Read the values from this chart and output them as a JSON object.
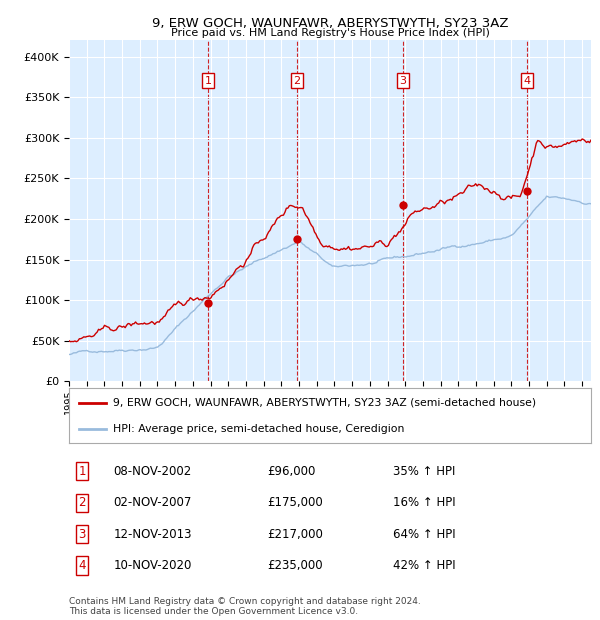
{
  "title": "9, ERW GOCH, WAUNFAWR, ABERYSTWYTH, SY23 3AZ",
  "subtitle": "Price paid vs. HM Land Registry's House Price Index (HPI)",
  "xlim": [
    1995.0,
    2024.5
  ],
  "ylim": [
    0,
    420000
  ],
  "yticks": [
    0,
    50000,
    100000,
    150000,
    200000,
    250000,
    300000,
    350000,
    400000
  ],
  "xtick_years": [
    1995,
    1996,
    1997,
    1998,
    1999,
    2000,
    2001,
    2002,
    2003,
    2004,
    2005,
    2006,
    2007,
    2008,
    2009,
    2010,
    2011,
    2012,
    2013,
    2014,
    2015,
    2016,
    2017,
    2018,
    2019,
    2020,
    2021,
    2022,
    2023,
    2024
  ],
  "sale_markers": [
    {
      "label": "1",
      "year": 2002.87,
      "price": 96000,
      "date": "08-NOV-2002",
      "pct": "35%",
      "dir": "↑"
    },
    {
      "label": "2",
      "year": 2007.87,
      "price": 175000,
      "date": "02-NOV-2007",
      "pct": "16%",
      "dir": "↑"
    },
    {
      "label": "3",
      "year": 2013.87,
      "price": 217000,
      "date": "12-NOV-2013",
      "pct": "64%",
      "dir": "↑"
    },
    {
      "label": "4",
      "year": 2020.87,
      "price": 235000,
      "date": "10-NOV-2020",
      "pct": "42%",
      "dir": "↑"
    }
  ],
  "property_line_color": "#cc0000",
  "hpi_line_color": "#99bbdd",
  "vline_color": "#cc0000",
  "marker_color": "#cc0000",
  "background_color": "#ddeeff",
  "legend_label_property": "9, ERW GOCH, WAUNFAWR, ABERYSTWYTH, SY23 3AZ (semi-detached house)",
  "legend_label_hpi": "HPI: Average price, semi-detached house, Ceredigion",
  "footer": "Contains HM Land Registry data © Crown copyright and database right 2024.\nThis data is licensed under the Open Government Licence v3.0."
}
